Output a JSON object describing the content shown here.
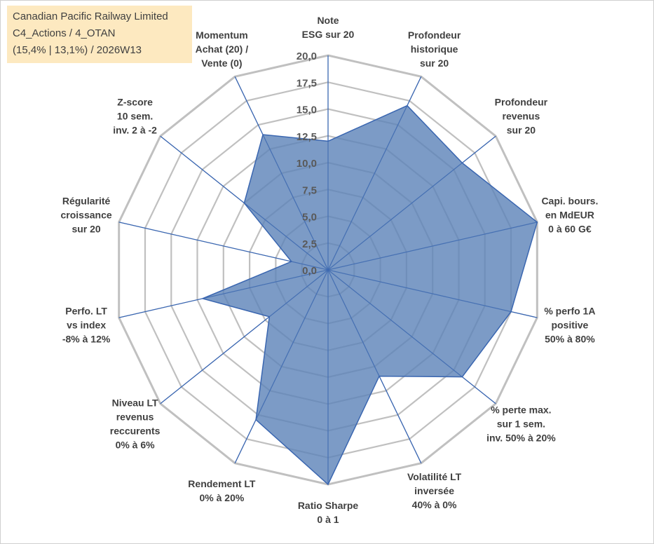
{
  "header": {
    "company": "Canadian Pacific Railway Limited",
    "classification": "C4_Actions / 4_OTAN",
    "performance": "(15,4% | 13,1%) / 2026W13"
  },
  "colors": {
    "fill": "#5b82b8",
    "line": "#3a66b0",
    "grid": "#c0c0c0",
    "title_bg": "#fce4b2"
  },
  "chart_data": {
    "type": "radar",
    "range": [
      0,
      20
    ],
    "ticks": [
      "0,0",
      "2,5",
      "5,0",
      "7,5",
      "10,0",
      "12,5",
      "15,0",
      "17,5",
      "20,0"
    ],
    "axes": [
      {
        "label": [
          "Note",
          "ESG sur 20"
        ],
        "value": 12.0
      },
      {
        "label": [
          "Profondeur",
          "historique",
          "sur 20"
        ],
        "value": 17.0
      },
      {
        "label": [
          "Profondeur",
          "revenus",
          "sur 20"
        ],
        "value": 16.0
      },
      {
        "label": [
          "Capi. bours.",
          "en MdEUR",
          "0 à 60 G€"
        ],
        "value": 20.0
      },
      {
        "label": [
          "% perfo 1A",
          "positive",
          "50% à 80%"
        ],
        "value": 17.5
      },
      {
        "label": [
          "% perte max.",
          "sur 1 sem.",
          "inv. 50% à 20%"
        ],
        "value": 16.0
      },
      {
        "label": [
          "Volatilité LT",
          "inversée",
          "40% à 0%"
        ],
        "value": 11.0
      },
      {
        "label": [
          "Ratio Sharpe",
          "0 à 1"
        ],
        "value": 20.0
      },
      {
        "label": [
          "Rendement LT",
          "0% à 20%"
        ],
        "value": 15.5
      },
      {
        "label": [
          "Niveau LT",
          "revenus",
          "reccurents",
          "0% à 6%"
        ],
        "value": 7.0
      },
      {
        "label": [
          "Perfo. LT",
          "vs index",
          "-8% à 12%"
        ],
        "value": 12.0
      },
      {
        "label": [
          "Régularité",
          "croissance",
          "sur 20"
        ],
        "value": 3.5
      },
      {
        "label": [
          "Z-score",
          "10 sem.",
          "inv. 2 à -2"
        ],
        "value": 10.0
      },
      {
        "label": [
          "Momentum",
          "Achat (20) /",
          "Vente (0)"
        ],
        "value": 14.0
      }
    ]
  }
}
